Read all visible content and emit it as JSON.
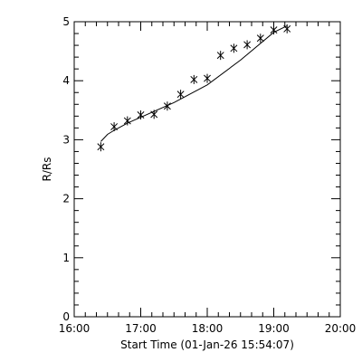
{
  "chart_data": {
    "type": "scatter",
    "xlabel": "Start Time (01-Jan-26 15:54:07)",
    "ylabel": "R/Rs",
    "xlim": [
      "16:00",
      "20:00"
    ],
    "ylim": [
      0,
      5
    ],
    "xticks": [
      "16:00",
      "17:00",
      "18:00",
      "19:00",
      "20:00"
    ],
    "yticks": [
      "0",
      "1",
      "2",
      "3",
      "4",
      "5"
    ],
    "grid": false,
    "legend": "none",
    "marker": "asterisk",
    "series": [
      {
        "x": [
          "16:24",
          "16:36",
          "16:48",
          "17:00",
          "17:12",
          "17:24",
          "17:36",
          "17:48",
          "18:00",
          "18:12",
          "18:24",
          "18:36",
          "18:48",
          "19:00",
          "19:12"
        ],
        "y": [
          2.88,
          3.22,
          3.32,
          3.42,
          3.43,
          3.57,
          3.77,
          4.02,
          4.04,
          4.43,
          4.55,
          4.61,
          4.72,
          4.86,
          4.88
        ]
      }
    ],
    "fit_line": {
      "x": [
        "16:24",
        "16:30",
        "16:36",
        "16:48",
        "17:00",
        "17:30",
        "18:00",
        "18:30",
        "19:00",
        "19:12"
      ],
      "y": [
        2.97,
        3.09,
        3.16,
        3.28,
        3.38,
        3.63,
        3.93,
        4.35,
        4.82,
        4.93
      ]
    },
    "colors": {
      "axis": "#000000",
      "marker": "#000000",
      "line": "#000000",
      "background": "#ffffff"
    }
  }
}
